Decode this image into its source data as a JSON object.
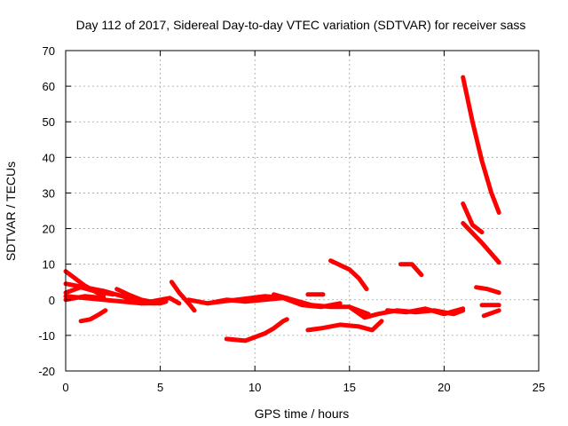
{
  "chart_data": {
    "type": "scatter",
    "title": "Day 112 of 2017, Sidereal Day-to-day VTEC variation (SDTVAR) for receiver sass",
    "xlabel": "GPS time / hours",
    "ylabel": "SDTVAR / TECUs",
    "xlim": [
      0,
      25
    ],
    "ylim": [
      -20,
      70
    ],
    "xticks": [
      0,
      5,
      10,
      15,
      20,
      25
    ],
    "yticks": [
      -20,
      -10,
      0,
      10,
      20,
      30,
      40,
      50,
      60,
      70
    ],
    "grid": true,
    "color": "#ff0000",
    "series": [
      {
        "x": [
          0.0,
          0.5,
          1.0,
          1.5,
          2.0
        ],
        "y": [
          8,
          6,
          4,
          2.5,
          1
        ]
      },
      {
        "x": [
          0.0,
          1.0,
          2.0,
          3.0,
          3.5,
          4.0
        ],
        "y": [
          4.5,
          3.5,
          2.5,
          1.0,
          0.0,
          -1.0
        ]
      },
      {
        "x": [
          0.0,
          0.8,
          1.5,
          2.5
        ],
        "y": [
          2,
          3.5,
          2.5,
          1.5
        ]
      },
      {
        "x": [
          0.0,
          1.0,
          2.0,
          3.0,
          4.0,
          5.0
        ],
        "y": [
          1,
          0.5,
          0,
          -0.5,
          -1,
          -1
        ]
      },
      {
        "x": [
          0.0,
          1.0,
          2.0
        ],
        "y": [
          0,
          1,
          0.5
        ]
      },
      {
        "x": [
          0.8,
          1.3,
          1.8,
          2.1
        ],
        "y": [
          -6,
          -5.5,
          -4,
          -3
        ]
      },
      {
        "x": [
          2.7,
          3.3,
          4.0,
          5.0,
          5.3
        ],
        "y": [
          3,
          1.5,
          0,
          -1,
          -0.5
        ]
      },
      {
        "x": [
          4.0,
          5.0,
          5.5,
          6.0
        ],
        "y": [
          -1,
          0,
          0.5,
          -1
        ]
      },
      {
        "x": [
          5.6,
          6.0,
          6.5,
          6.8
        ],
        "y": [
          5,
          2,
          -1,
          -3
        ]
      },
      {
        "x": [
          6.5,
          7.5,
          8.5,
          9.5,
          10.5,
          11.5
        ],
        "y": [
          0,
          -1,
          0,
          -0.5,
          0,
          0.5
        ]
      },
      {
        "x": [
          7.5,
          9.0,
          10.5,
          11.7
        ],
        "y": [
          -1,
          0,
          1,
          0.5
        ]
      },
      {
        "x": [
          8.5,
          9.5,
          10.5,
          11.0,
          11.5,
          11.7
        ],
        "y": [
          -11,
          -11.5,
          -9.5,
          -8,
          -6,
          -5.5
        ]
      },
      {
        "x": [
          11.0,
          12.0,
          13.0,
          14.0,
          15.0,
          16.0
        ],
        "y": [
          1.5,
          0,
          -1.5,
          -2,
          -2,
          -4
        ]
      },
      {
        "x": [
          11.5,
          12.5,
          13.5,
          14.5
        ],
        "y": [
          0.5,
          -1.5,
          -2,
          -1
        ]
      },
      {
        "x": [
          12.8,
          13.6
        ],
        "y": [
          1.5,
          1.5
        ]
      },
      {
        "x": [
          12.8,
          13.5,
          14.5,
          15.5,
          16.2,
          16.7
        ],
        "y": [
          -8.5,
          -8,
          -7,
          -7.5,
          -8.5,
          -6
        ]
      },
      {
        "x": [
          14.0,
          15.0,
          15.5,
          15.9
        ],
        "y": [
          11,
          8.5,
          6,
          3
        ]
      },
      {
        "x": [
          15.0,
          15.8,
          16.5,
          17.5,
          18.5,
          19.5,
          20.5,
          21.0
        ],
        "y": [
          -2,
          -5,
          -4,
          -3,
          -3.5,
          -3,
          -4,
          -3
        ]
      },
      {
        "x": [
          17.0,
          18.0,
          19.0,
          20.0,
          21.0
        ],
        "y": [
          -3,
          -3.5,
          -2.5,
          -4,
          -2.5
        ]
      },
      {
        "x": [
          17.7,
          18.3,
          18.8
        ],
        "y": [
          10,
          10,
          7
        ]
      },
      {
        "x": [
          21.0,
          21.5,
          22.0,
          22.5,
          22.9
        ],
        "y": [
          62.5,
          50,
          39,
          30,
          24.5
        ]
      },
      {
        "x": [
          21.0,
          21.5,
          22.0
        ],
        "y": [
          27,
          21,
          19
        ]
      },
      {
        "x": [
          21.0,
          22.0,
          22.9
        ],
        "y": [
          21.5,
          16,
          10.5
        ]
      },
      {
        "x": [
          21.7,
          22.3,
          22.9
        ],
        "y": [
          3.5,
          3,
          2
        ]
      },
      {
        "x": [
          22.0,
          22.9
        ],
        "y": [
          -1.5,
          -1.5
        ]
      },
      {
        "x": [
          22.1,
          22.9
        ],
        "y": [
          -4.5,
          -3
        ]
      }
    ]
  }
}
